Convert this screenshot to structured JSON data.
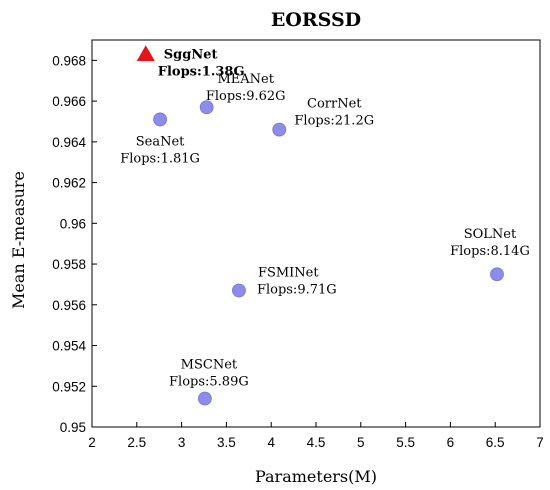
{
  "chart_data": {
    "type": "scatter",
    "title": "EORSSD",
    "xlabel": "Parameters(M)",
    "ylabel": "Mean E-measure",
    "xlim": [
      2,
      7
    ],
    "ylim": [
      0.95,
      0.969
    ],
    "xticks": [
      "2",
      "2.5",
      "3",
      "3.5",
      "4",
      "4.5",
      "5",
      "5.5",
      "6",
      "6.5",
      "7"
    ],
    "yticks": [
      "0.95",
      "0.952",
      "0.954",
      "0.956",
      "0.958",
      "0.96",
      "0.962",
      "0.964",
      "0.966",
      "0.968"
    ],
    "grid": false,
    "colors": {
      "highlight": "#e8141b",
      "point": "#8b8de8",
      "point_stroke": "#7375d6"
    },
    "points": [
      {
        "name": "SggNet",
        "flops": "Flops:1.38G",
        "x": 2.6,
        "y": 0.9683,
        "marker": "triangle",
        "highlight": true,
        "label_pos": "right"
      },
      {
        "name": "MEANet",
        "flops": "Flops:9.62G",
        "x": 3.28,
        "y": 0.9657,
        "marker": "circle",
        "label_pos": "above"
      },
      {
        "name": "SeaNet",
        "flops": "Flops:1.81G",
        "x": 2.76,
        "y": 0.9651,
        "marker": "circle",
        "label_pos": "below"
      },
      {
        "name": "CorrNet",
        "flops": "Flops:21.2G",
        "x": 4.09,
        "y": 0.9646,
        "marker": "circle",
        "label_pos": "above-right"
      },
      {
        "name": "SOLNet",
        "flops": "Flops:8.14G",
        "x": 6.52,
        "y": 0.9575,
        "marker": "circle",
        "label_pos": "above"
      },
      {
        "name": "FSMINet",
        "flops": "Flops:9.71G",
        "x": 3.64,
        "y": 0.9567,
        "marker": "circle",
        "label_pos": "right"
      },
      {
        "name": "MSCNet",
        "flops": "Flops:5.89G",
        "x": 3.26,
        "y": 0.9514,
        "marker": "circle",
        "label_pos": "above"
      }
    ]
  }
}
